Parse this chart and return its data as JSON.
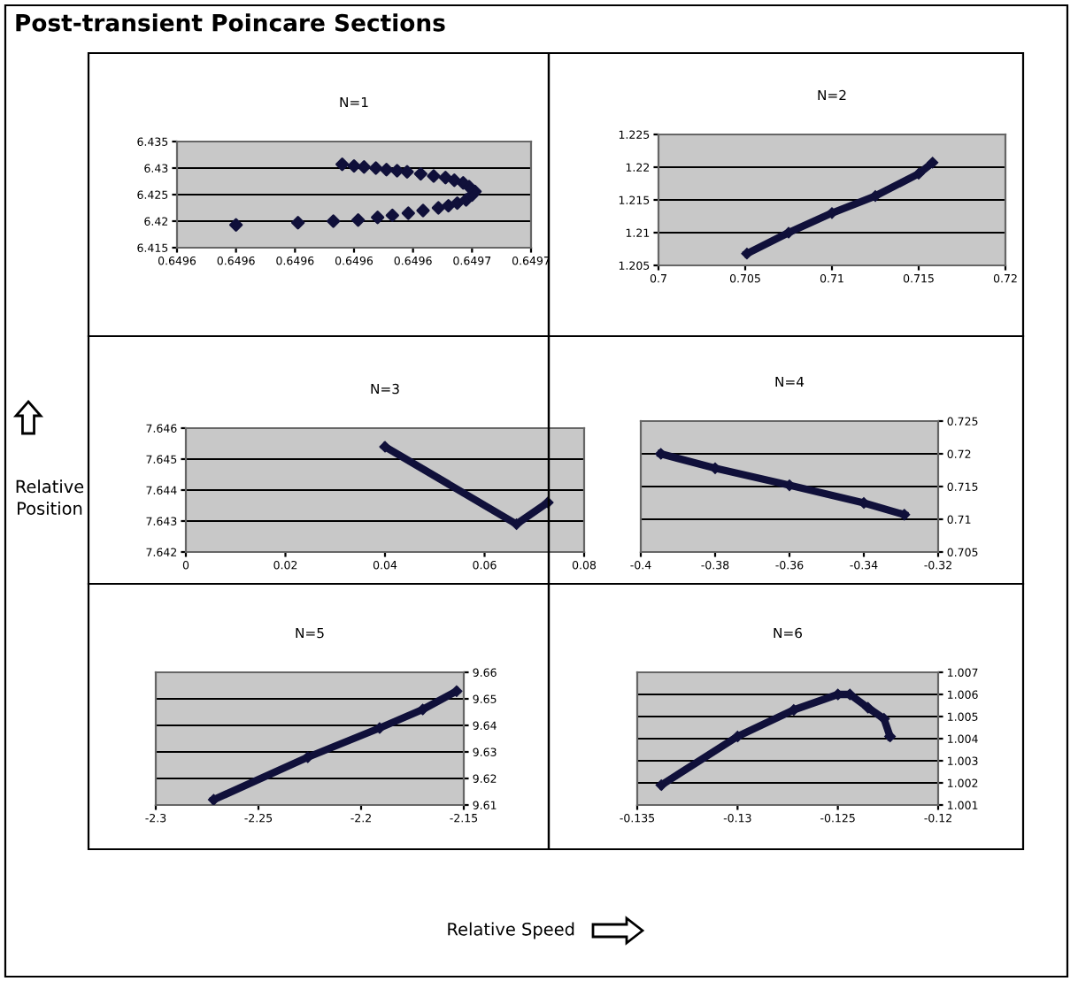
{
  "chart_data": [
    {
      "type": "other",
      "title": "Post-transient Poincare Sections",
      "xlabel": "Relative Speed",
      "ylabel": "Relative Position"
    },
    {
      "type": "scatter",
      "title": "N=1",
      "marker": "diamond",
      "grid": "y",
      "xlim": [
        0.6496,
        0.64966
      ],
      "xticks": [
        {
          "value": 0.6496,
          "label": "0.6496"
        },
        {
          "value": 0.64961,
          "label": "0.6496"
        },
        {
          "value": 0.64962,
          "label": "0.6496"
        },
        {
          "value": 0.64963,
          "label": "0.6496"
        },
        {
          "value": 0.64964,
          "label": "0.6496"
        },
        {
          "value": 0.64965,
          "label": "0.6497"
        },
        {
          "value": 0.64966,
          "label": "0.6497"
        }
      ],
      "ylim": [
        6.415,
        6.435
      ],
      "yticks": [
        6.415,
        6.42,
        6.425,
        6.43,
        6.435
      ],
      "series": [
        {
          "color": "#10103a",
          "x": [
            0.64961,
            0.6496205,
            0.6496265,
            0.6496307,
            0.649634,
            0.6496365,
            0.6496392,
            0.6496417,
            0.6496443,
            0.649646,
            0.6496475,
            0.649649,
            0.64965,
            0.6496505,
            0.6496495,
            0.6496485,
            0.649647,
            0.6496455,
            0.6496435,
            0.6496413,
            0.649639,
            0.6496373,
            0.6496355,
            0.6496337,
            0.6496317,
            0.64963,
            0.649628
          ],
          "values": [
            6.4193,
            6.4197,
            6.42,
            6.4202,
            6.4207,
            6.4211,
            6.4215,
            6.422,
            6.4225,
            6.4229,
            6.4234,
            6.424,
            6.4249,
            6.4256,
            6.4265,
            6.4272,
            6.4277,
            6.4282,
            6.4285,
            6.4289,
            6.4293,
            6.4295,
            6.4297,
            6.43,
            6.4302,
            6.4304,
            6.4307
          ]
        }
      ]
    },
    {
      "type": "line",
      "title": "N=2",
      "marker": "diamond",
      "line_style": "solid",
      "grid": "y",
      "xlim": [
        0.7,
        0.72
      ],
      "xticks": [
        0.7,
        0.705,
        0.71,
        0.715,
        0.72
      ],
      "ylim": [
        1.205,
        1.225
      ],
      "yticks": [
        1.205,
        1.21,
        1.215,
        1.22,
        1.225
      ],
      "series": [
        {
          "color": "#10103a",
          "x": [
            0.7051,
            0.7075,
            0.71,
            0.7125,
            0.715,
            0.7158
          ],
          "values": [
            1.2068,
            1.21,
            1.213,
            1.2156,
            1.219,
            1.2207
          ]
        }
      ]
    },
    {
      "type": "line",
      "title": "N=3",
      "marker": "diamond",
      "line_style": "solid",
      "grid": "y",
      "xlim": [
        0,
        0.08
      ],
      "xticks": [
        0,
        0.02,
        0.04,
        0.06,
        0.08
      ],
      "ylim": [
        7.642,
        7.646
      ],
      "yticks": [
        7.642,
        7.643,
        7.644,
        7.645,
        7.646
      ],
      "series": [
        {
          "color": "#10103a",
          "x": [
            0.04,
            0.0664,
            0.0727
          ],
          "values": [
            7.6454,
            7.6429,
            7.6436
          ]
        }
      ]
    },
    {
      "type": "line",
      "title": "N=4",
      "marker": "diamond",
      "line_style": "solid",
      "grid": "y",
      "xlim": [
        -0.4,
        -0.32
      ],
      "xticks": [
        -0.4,
        -0.38,
        -0.36,
        -0.34,
        -0.32
      ],
      "y2lim": [
        0.705,
        0.725
      ],
      "y2ticks": [
        0.705,
        0.71,
        0.715,
        0.72,
        0.725
      ],
      "series": [
        {
          "color": "#10103a",
          "axis": "y2",
          "x": [
            -0.3946,
            -0.38,
            -0.36,
            -0.34,
            -0.3291
          ],
          "values": [
            0.72,
            0.7178,
            0.7152,
            0.7125,
            0.7107
          ]
        }
      ]
    },
    {
      "type": "line",
      "title": "N=5",
      "marker": "diamond",
      "line_style": "solid",
      "grid": "y",
      "xlim": [
        -2.3,
        -2.15
      ],
      "xticks": [
        -2.3,
        -2.25,
        -2.2,
        -2.15
      ],
      "y2lim": [
        9.61,
        9.66
      ],
      "y2ticks": [
        9.61,
        9.62,
        9.63,
        9.64,
        9.65,
        9.66
      ],
      "series": [
        {
          "color": "#10103a",
          "axis": "y2",
          "x": [
            -2.2718,
            -2.226,
            -2.191,
            -2.17,
            -2.1535
          ],
          "values": [
            9.612,
            9.628,
            9.639,
            9.646,
            9.6529
          ]
        }
      ]
    },
    {
      "type": "line",
      "title": "N=6",
      "marker": "diamond",
      "line_style": "solid",
      "grid": "y",
      "xlim": [
        -0.135,
        -0.12
      ],
      "xticks": [
        -0.135,
        -0.13,
        -0.125,
        -0.12
      ],
      "y2lim": [
        1.001,
        1.007
      ],
      "y2ticks": [
        1.001,
        1.002,
        1.003,
        1.004,
        1.005,
        1.006,
        1.007
      ],
      "series": [
        {
          "color": "#10103a",
          "axis": "y2",
          "x": [
            -0.1338,
            -0.13,
            -0.1272,
            -0.125,
            -0.1244,
            -0.1235,
            -0.1227,
            -0.1224
          ],
          "values": [
            1.0019,
            1.0041,
            1.0053,
            1.006,
            1.006,
            1.0054,
            1.0049,
            1.0041
          ]
        }
      ]
    }
  ]
}
